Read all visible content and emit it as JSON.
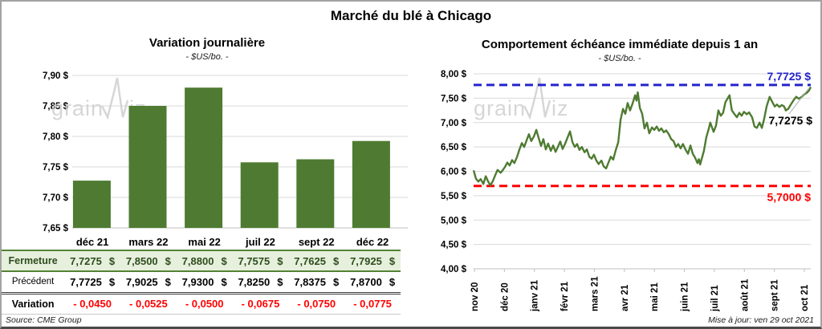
{
  "page": {
    "title": "Marché du blé à Chicago",
    "source": "Source: CME Group",
    "updated": "Mise à jour: ven 29 oct 2021",
    "watermark": "grainwiz"
  },
  "colors": {
    "green": "#4e7b31",
    "table_green_bg": "#e6f0dd",
    "table_green_border": "#548235",
    "fermeture_text": "#2e4d1d",
    "blue": "#2424cc",
    "red": "#ff0000",
    "grid": "#d9d9d9",
    "axis": "#bfbfbf",
    "watermark_gray": "#cdcdcd",
    "variation_red": "#ff0000"
  },
  "chart_data": [
    {
      "type": "bar",
      "title": "Variation journalière",
      "subtitle": "- $US/bo. -",
      "categories": [
        "déc 21",
        "mars 22",
        "mai 22",
        "juil 22",
        "sept 22",
        "déc 22"
      ],
      "values": [
        7.7275,
        7.85,
        7.88,
        7.7575,
        7.7625,
        7.7925
      ],
      "ylim": [
        7.65,
        7.9
      ],
      "ytick_step": 0.05,
      "ytick_labels": [
        "7,90 $",
        "7,85 $",
        "7,80 $",
        "7,75 $",
        "7,70 $",
        "7,65 $"
      ],
      "grid": true,
      "legend": "none"
    },
    {
      "type": "line",
      "title": "Comportement échéance immédiate depuis 1 an",
      "subtitle": "- $US/bo. -",
      "x_tick_labels": [
        "nov 20",
        "déc 20",
        "janv 21",
        "févr 21",
        "mars 21",
        "avr 21",
        "mai 21",
        "juin 21",
        "juil 21",
        "août 21",
        "sept 21",
        "oct 21"
      ],
      "ylim": [
        4.0,
        8.0
      ],
      "ytick_step": 0.5,
      "ytick_labels": [
        "8,00 $",
        "7,50 $",
        "7,00 $",
        "6,50 $",
        "6,00 $",
        "5,50 $",
        "5,00 $",
        "4,50 $",
        "4,00 $"
      ],
      "grid": true,
      "legend": "none",
      "high_line": {
        "value": 7.7725,
        "label": "7,7725 $"
      },
      "low_line": {
        "value": 5.7,
        "label": "5,7000 $"
      },
      "last_point": {
        "value": 7.7275,
        "label": "7,7275 $"
      },
      "series": [
        {
          "name": "échéance immédiate",
          "points": [
            [
              0,
              6.02
            ],
            [
              0.7,
              5.85
            ],
            [
              1.4,
              5.79
            ],
            [
              2.1,
              5.84
            ],
            [
              2.9,
              5.74
            ],
            [
              3.6,
              5.9
            ],
            [
              4.3,
              5.79
            ],
            [
              5,
              5.71
            ],
            [
              5.7,
              5.8
            ],
            [
              6.4,
              5.92
            ],
            [
              7.1,
              6.03
            ],
            [
              8,
              5.97
            ],
            [
              8.6,
              6.02
            ],
            [
              9.3,
              6.09
            ],
            [
              10,
              6.18
            ],
            [
              10.7,
              6.12
            ],
            [
              11.4,
              6.23
            ],
            [
              12.1,
              6.17
            ],
            [
              12.9,
              6.3
            ],
            [
              13.6,
              6.45
            ],
            [
              14.3,
              6.58
            ],
            [
              15,
              6.5
            ],
            [
              15.7,
              6.63
            ],
            [
              16.4,
              6.76
            ],
            [
              17.1,
              6.62
            ],
            [
              17.9,
              6.72
            ],
            [
              18.6,
              6.85
            ],
            [
              19.3,
              6.68
            ],
            [
              20,
              6.52
            ],
            [
              20.7,
              6.66
            ],
            [
              21.4,
              6.45
            ],
            [
              22.1,
              6.57
            ],
            [
              22.9,
              6.42
            ],
            [
              23.6,
              6.53
            ],
            [
              24.3,
              6.4
            ],
            [
              25,
              6.5
            ],
            [
              25.7,
              6.61
            ],
            [
              26.4,
              6.46
            ],
            [
              27.1,
              6.56
            ],
            [
              27.9,
              6.7
            ],
            [
              28.6,
              6.82
            ],
            [
              29.3,
              6.6
            ],
            [
              30,
              6.5
            ],
            [
              30.7,
              6.56
            ],
            [
              31.4,
              6.44
            ],
            [
              32.1,
              6.5
            ],
            [
              32.9,
              6.39
            ],
            [
              33.6,
              6.45
            ],
            [
              34.3,
              6.3
            ],
            [
              35,
              6.26
            ],
            [
              35.7,
              6.34
            ],
            [
              36.4,
              6.22
            ],
            [
              37.1,
              6.15
            ],
            [
              37.9,
              6.22
            ],
            [
              38.6,
              6.1
            ],
            [
              39.3,
              6.06
            ],
            [
              40,
              6.18
            ],
            [
              40.7,
              6.3
            ],
            [
              41.4,
              6.24
            ],
            [
              42.1,
              6.42
            ],
            [
              42.9,
              6.6
            ],
            [
              43.6,
              7.06
            ],
            [
              44.3,
              7.28
            ],
            [
              45,
              7.18
            ],
            [
              45.7,
              7.4
            ],
            [
              46.4,
              7.25
            ],
            [
              47.1,
              7.38
            ],
            [
              47.9,
              7.56
            ],
            [
              48.3,
              7.45
            ],
            [
              48.7,
              7.62
            ],
            [
              49.3,
              7.3
            ],
            [
              50,
              7.18
            ],
            [
              50.7,
              6.88
            ],
            [
              51.4,
              7
            ],
            [
              52.1,
              6.78
            ],
            [
              52.9,
              6.9
            ],
            [
              53.6,
              6.85
            ],
            [
              54.3,
              6.92
            ],
            [
              55,
              6.83
            ],
            [
              55.7,
              6.88
            ],
            [
              56.4,
              6.8
            ],
            [
              57.1,
              6.84
            ],
            [
              57.9,
              6.76
            ],
            [
              58.6,
              6.66
            ],
            [
              59.3,
              6.62
            ],
            [
              60,
              6.5
            ],
            [
              60.7,
              6.56
            ],
            [
              61.4,
              6.47
            ],
            [
              62.1,
              6.56
            ],
            [
              62.9,
              6.44
            ],
            [
              63.6,
              6.36
            ],
            [
              64.3,
              6.53
            ],
            [
              65,
              6.36
            ],
            [
              65.7,
              6.28
            ],
            [
              66.4,
              6.17
            ],
            [
              66.8,
              6.25
            ],
            [
              67.2,
              6.14
            ],
            [
              68.3,
              6.42
            ],
            [
              69,
              6.69
            ],
            [
              69.8,
              6.89
            ],
            [
              70.2,
              7
            ],
            [
              71.2,
              6.81
            ],
            [
              71.9,
              6.94
            ],
            [
              72.6,
              7.25
            ],
            [
              73.3,
              7.14
            ],
            [
              74,
              7.2
            ],
            [
              74.7,
              7.42
            ],
            [
              75.9,
              7.56
            ],
            [
              76.6,
              7.25
            ],
            [
              77.4,
              7.17
            ],
            [
              78.1,
              7.11
            ],
            [
              78.8,
              7.2
            ],
            [
              79.5,
              7.14
            ],
            [
              80.2,
              7.22
            ],
            [
              81,
              7.17
            ],
            [
              81.7,
              7.21
            ],
            [
              82.6,
              7.11
            ],
            [
              83.3,
              6.92
            ],
            [
              84,
              6.89
            ],
            [
              84.8,
              7
            ],
            [
              85.5,
              6.89
            ],
            [
              86.2,
              7.08
            ],
            [
              86.9,
              7.33
            ],
            [
              87.8,
              7.53
            ],
            [
              88.6,
              7.42
            ],
            [
              89.3,
              7.33
            ],
            [
              90,
              7.37
            ],
            [
              90.7,
              7.32
            ],
            [
              91.4,
              7.36
            ],
            [
              92.1,
              7.33
            ],
            [
              92.6,
              7.25
            ],
            [
              93.3,
              7.28
            ],
            [
              94,
              7.36
            ],
            [
              95,
              7.47
            ],
            [
              95.7,
              7.53
            ],
            [
              96.4,
              7.49
            ],
            [
              97.4,
              7.53
            ],
            [
              98.1,
              7.58
            ],
            [
              98.8,
              7.61
            ],
            [
              99.4,
              7.65
            ],
            [
              100,
              7.73
            ]
          ]
        }
      ]
    }
  ],
  "table": {
    "currency": "$",
    "col_headers": [
      "déc 21",
      "mars 22",
      "mai 22",
      "juil 22",
      "sept 22",
      "déc 22"
    ],
    "rows": [
      {
        "label": "Fermeture",
        "values": [
          "7,7275",
          "7,8500",
          "7,8800",
          "7,7575",
          "7,7625",
          "7,7925"
        ]
      },
      {
        "label": "Précédent",
        "values": [
          "7,7725",
          "7,9025",
          "7,9300",
          "7,8250",
          "7,8375",
          "7,8700"
        ]
      },
      {
        "label": "Variation",
        "values": [
          "- 0,0450",
          "- 0,0525",
          "- 0,0500",
          "- 0,0675",
          "- 0,0750",
          "- 0,0775"
        ]
      }
    ]
  }
}
